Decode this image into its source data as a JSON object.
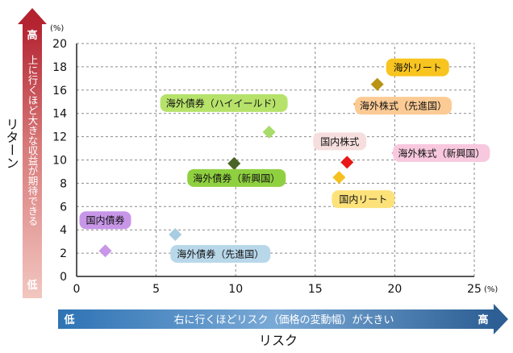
{
  "chart_data": {
    "type": "scatter",
    "xlim": [
      0,
      25
    ],
    "ylim": [
      0,
      20
    ],
    "x_ticks": [
      "0",
      "5",
      "10",
      "15",
      "20",
      "25"
    ],
    "y_ticks": [
      "0",
      "2",
      "4",
      "6",
      "8",
      "10",
      "12",
      "14",
      "16",
      "18",
      "20"
    ],
    "x_unit": "(%)",
    "y_unit": "(%)",
    "grid": true,
    "points": [
      {
        "name": "国内債券",
        "x": 1.8,
        "y": 2.2,
        "color": "#c896e8",
        "label_color": "#c896e8"
      },
      {
        "name": "海外債券（先進国）",
        "x": 6.2,
        "y": 3.6,
        "color": "#a9cde0",
        "label_color": "#b8d8ea"
      },
      {
        "name": "海外債券（新興国）",
        "x": 9.9,
        "y": 9.7,
        "color": "#4a6326",
        "label_color": "#8fd040"
      },
      {
        "name": "海外債券（ハイイールド）",
        "x": 12.1,
        "y": 12.4,
        "color": "#a7dc6a",
        "label_color": "#b6e26a"
      },
      {
        "name": "国内株式",
        "x": 17.0,
        "y": 9.8,
        "color": "#e81818",
        "label_color": "#f6dede"
      },
      {
        "name": "国内リート",
        "x": 16.5,
        "y": 8.5,
        "color": "#f6c020",
        "label_color": "#fde27a"
      },
      {
        "name": "海外株式（先進国）",
        "x": 17.8,
        "y": 14.8,
        "color": "#f39a2a",
        "label_color": "#fccb95"
      },
      {
        "name": "海外リート",
        "x": 18.9,
        "y": 16.5,
        "color": "#b89314",
        "label_color": "#f8c420"
      },
      {
        "name": "海外株式（新興国）",
        "x": 20.2,
        "y": 10.6,
        "color": "#f7a6cc",
        "label_color": "#f8c8de"
      }
    ]
  },
  "y_axis": {
    "title": "リターン",
    "arrow_text": "上に行くほど大きな収益が期待できる",
    "high": "高",
    "low": "低"
  },
  "x_axis": {
    "title": "リスク",
    "arrow_text": "右に行くほどリスク（価格の変動幅）が大きい",
    "low": "低",
    "high": "高"
  }
}
